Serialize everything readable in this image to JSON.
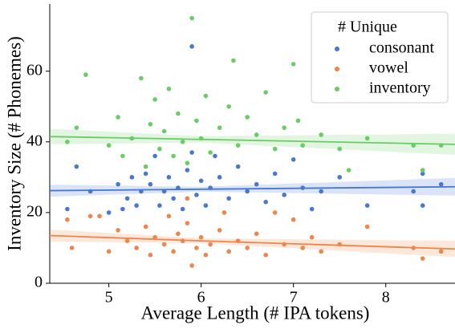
{
  "chart_data": {
    "type": "scatter",
    "x_label": "Average Length (# IPA tokens)",
    "y_label": "Inventory Size (# Phonemes)",
    "xlim": [
      4.36,
      8.75
    ],
    "ylim": [
      0,
      79
    ],
    "xticks": [
      5,
      6,
      7,
      8
    ],
    "yticks": [
      0,
      20,
      40,
      60
    ],
    "legend_title": "# Unique",
    "legend_position": "upper right",
    "fit_x": [
      4.36,
      6,
      8.75
    ],
    "series": [
      {
        "name": "consonant",
        "color": "#4878d0",
        "x": [
          4.55,
          4.65,
          4.8,
          5.0,
          5.1,
          5.15,
          5.2,
          5.25,
          5.3,
          5.35,
          5.4,
          5.45,
          5.5,
          5.55,
          5.6,
          5.65,
          5.7,
          5.75,
          5.8,
          5.85,
          5.9,
          5.95,
          6.0,
          6.05,
          6.1,
          6.2,
          6.3,
          6.4,
          6.5,
          6.6,
          6.7,
          6.8,
          6.9,
          7.0,
          7.1,
          7.2,
          7.3,
          7.5,
          7.8,
          8.3,
          8.4,
          8.6,
          8.4,
          5.9,
          6.15
        ],
        "values": [
          21,
          33,
          26,
          20,
          28,
          21,
          24,
          30,
          22,
          26,
          31,
          28,
          36,
          22,
          26,
          30,
          24,
          27,
          21,
          32,
          67,
          25,
          29,
          22,
          27,
          30,
          24,
          33,
          26,
          28,
          23,
          31,
          25,
          35,
          27,
          21,
          26,
          30,
          22,
          26,
          31,
          28,
          22,
          37,
          36
        ],
        "trend_values": [
          26.2,
          26.6,
          27.3
        ],
        "band_lower": [
          24.5,
          25.9,
          24.8
        ],
        "band_upper": [
          27.9,
          27.3,
          29.8
        ]
      },
      {
        "name": "vowel",
        "color": "#ee854a",
        "x": [
          4.55,
          4.6,
          4.8,
          4.9,
          5.0,
          5.1,
          5.2,
          5.3,
          5.4,
          5.45,
          5.5,
          5.6,
          5.65,
          5.7,
          5.75,
          5.8,
          5.85,
          5.9,
          5.95,
          6.0,
          6.05,
          6.1,
          6.2,
          6.3,
          6.4,
          6.5,
          6.6,
          6.7,
          6.8,
          6.9,
          7.0,
          7.1,
          7.2,
          7.3,
          7.5,
          7.8,
          8.3,
          8.4,
          8.6,
          6.25,
          5.85
        ],
        "values": [
          18,
          10,
          19,
          19,
          9,
          15,
          12,
          10,
          16,
          8,
          13,
          11,
          19,
          9,
          14,
          12,
          17,
          5,
          10,
          13,
          8,
          11,
          15,
          9,
          12,
          10,
          14,
          8,
          20,
          11,
          18,
          10,
          13,
          9,
          11,
          16,
          10,
          7,
          9,
          20,
          24
        ],
        "trend_values": [
          13.5,
          12.0,
          9.7
        ],
        "band_lower": [
          11.8,
          11.3,
          7.4
        ],
        "band_upper": [
          15.2,
          12.7,
          12.0
        ]
      },
      {
        "name": "inventory",
        "color": "#6acc64",
        "x": [
          4.55,
          4.65,
          4.75,
          5.0,
          5.1,
          5.15,
          5.25,
          5.35,
          5.4,
          5.45,
          5.5,
          5.55,
          5.6,
          5.65,
          5.7,
          5.75,
          5.8,
          5.85,
          5.9,
          5.95,
          6.0,
          6.05,
          6.1,
          6.2,
          6.3,
          6.35,
          6.4,
          6.5,
          6.6,
          6.7,
          6.8,
          6.9,
          7.0,
          7.05,
          7.1,
          7.3,
          7.5,
          7.6,
          7.8,
          8.3,
          8.4,
          8.6
        ],
        "values": [
          40,
          44,
          59,
          39,
          47,
          36,
          41,
          58,
          33,
          45,
          52,
          38,
          43,
          55,
          36,
          48,
          40,
          34,
          75,
          46,
          41,
          53,
          37,
          44,
          50,
          63,
          39,
          47,
          42,
          54,
          38,
          44,
          62,
          46,
          39,
          42,
          38,
          32,
          41,
          39,
          32,
          39
        ],
        "trend_values": [
          41.5,
          40.7,
          39.3
        ],
        "band_lower": [
          39.3,
          39.8,
          36.3
        ],
        "band_upper": [
          43.7,
          41.6,
          42.3
        ]
      }
    ]
  }
}
